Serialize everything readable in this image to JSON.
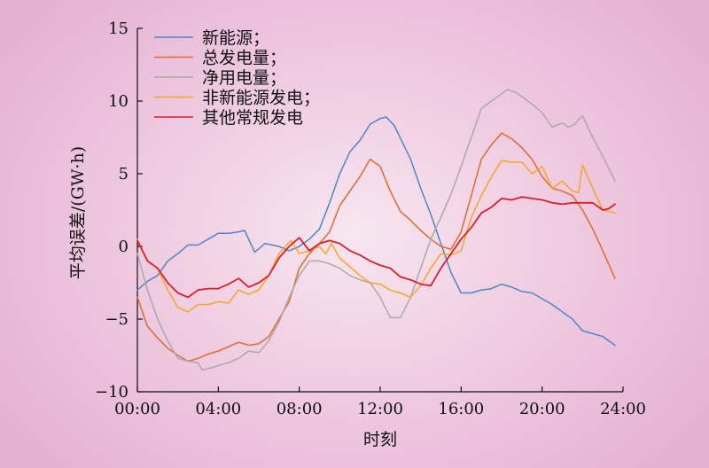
{
  "chart_data": {
    "type": "line",
    "title": "",
    "xlabel": "时刻",
    "ylabel": "平均误差/(GW·h)",
    "x_ticks": [
      "00:00",
      "04:00",
      "08:00",
      "12:00",
      "16:00",
      "20:00",
      "24:00"
    ],
    "y_ticks": [
      "15",
      "10",
      "5",
      "0",
      "−5",
      "−10"
    ],
    "xlim": [
      0,
      24
    ],
    "ylim": [
      -10,
      15
    ],
    "legend_position": "top-left",
    "grid": false,
    "series": [
      {
        "name": "新能源；",
        "color": "#4f86c6",
        "x": [
          0,
          0.5,
          1,
          1.5,
          2,
          2.5,
          3,
          3.5,
          4,
          4.5,
          5,
          5.3,
          5.8,
          6.3,
          7,
          7.5,
          8,
          8.5,
          9,
          9.5,
          10,
          10.5,
          11,
          11.5,
          12,
          12.3,
          12.7,
          13.5,
          14,
          14.5,
          15,
          15.5,
          16,
          16.5,
          17,
          17.5,
          18,
          18.5,
          19,
          19.5,
          20,
          20.5,
          21,
          21.5,
          22,
          22.5,
          23,
          23.6
        ],
        "y": [
          -3.0,
          -2.4,
          -2.0,
          -1.0,
          -0.5,
          0.1,
          0.1,
          0.5,
          0.9,
          0.9,
          1.0,
          1.1,
          -0.4,
          0.2,
          0.0,
          -0.3,
          0.0,
          0.5,
          1.2,
          3.0,
          5.0,
          6.5,
          7.3,
          8.4,
          8.8,
          8.9,
          8.3,
          6.0,
          4.0,
          2.2,
          0.2,
          -1.8,
          -3.2,
          -3.2,
          -3.0,
          -2.9,
          -2.6,
          -2.8,
          -3.1,
          -3.2,
          -3.6,
          -4.0,
          -4.5,
          -5.0,
          -5.8,
          -6.0,
          -6.2,
          -6.8
        ]
      },
      {
        "name": "总发电量；",
        "color": "#e06b2c",
        "x": [
          0,
          0.5,
          1,
          1.5,
          2,
          2.5,
          3,
          3.5,
          4,
          4.5,
          5,
          5.5,
          6,
          6.5,
          7,
          7.5,
          8,
          8.5,
          9,
          9.5,
          10,
          10.5,
          11,
          11.5,
          12,
          12.5,
          13,
          13.5,
          14,
          14.5,
          15,
          15.5,
          16,
          16.5,
          17,
          17.5,
          18,
          18.5,
          19,
          19.5,
          20,
          20.5,
          21,
          21.5,
          22,
          22.5,
          23,
          23.6
        ],
        "y": [
          -3.5,
          -5.5,
          -6.3,
          -7.0,
          -7.5,
          -7.9,
          -7.7,
          -7.4,
          -7.2,
          -6.9,
          -6.6,
          -6.8,
          -6.7,
          -6.2,
          -5.0,
          -3.8,
          -1.5,
          -0.5,
          0.2,
          1.0,
          2.8,
          3.8,
          4.8,
          6.0,
          5.5,
          3.8,
          2.4,
          1.8,
          1.1,
          0.5,
          0.0,
          -0.2,
          1.0,
          3.5,
          6.0,
          7.0,
          7.8,
          7.4,
          6.8,
          6.0,
          4.8,
          4.0,
          3.8,
          3.5,
          2.5,
          1.2,
          -0.3,
          -2.2
        ]
      },
      {
        "name": "净用电量；",
        "color": "#a9a9a9",
        "x": [
          0,
          0.5,
          1,
          1.5,
          2,
          2.5,
          3,
          3.2,
          3.5,
          4,
          4.5,
          5,
          5.5,
          6,
          6.5,
          7,
          7.5,
          8,
          8.5,
          9,
          9.5,
          10,
          10.5,
          11,
          11.5,
          12,
          12.5,
          13,
          13.5,
          14,
          14.5,
          15,
          15.5,
          16,
          16.5,
          17,
          17.5,
          18,
          18.3,
          18.7,
          19,
          19.5,
          20,
          20.5,
          21,
          21.3,
          21.6,
          22,
          22.5,
          23,
          23.6
        ],
        "y": [
          -0.5,
          -3.0,
          -5.0,
          -6.5,
          -7.7,
          -7.9,
          -8.0,
          -8.5,
          -8.4,
          -8.2,
          -8.0,
          -7.7,
          -7.2,
          -7.3,
          -6.5,
          -5.2,
          -3.5,
          -2.0,
          -1.0,
          -1.0,
          -1.2,
          -1.5,
          -2.0,
          -2.3,
          -2.5,
          -3.5,
          -4.9,
          -4.9,
          -3.5,
          -1.5,
          0.5,
          2.0,
          3.6,
          5.5,
          7.5,
          9.5,
          10.0,
          10.5,
          10.8,
          10.6,
          10.3,
          9.8,
          9.2,
          8.2,
          8.5,
          8.2,
          8.4,
          9.0,
          7.5,
          6.2,
          4.5
        ]
      },
      {
        "name": "非新能源发电；",
        "color": "#f5a623",
        "x": [
          0,
          0.5,
          1,
          1.5,
          2,
          2.5,
          3,
          3.5,
          4,
          4.5,
          5,
          5.5,
          6,
          6.5,
          7,
          7.3,
          7.6,
          8,
          8.5,
          9,
          9.3,
          9.6,
          10,
          10.5,
          11,
          11.5,
          12,
          12.5,
          13,
          13.5,
          14,
          14.5,
          15,
          15.5,
          16,
          16.5,
          17,
          17.5,
          18,
          18.5,
          19,
          19.5,
          20,
          20.5,
          21,
          21.5,
          21.8,
          22,
          22.5,
          23,
          23.6
        ],
        "y": [
          0.5,
          -1.0,
          -1.5,
          -3.0,
          -4.2,
          -4.5,
          -4.0,
          -4.0,
          -3.8,
          -3.9,
          -3.0,
          -3.3,
          -3.0,
          -2.0,
          -0.5,
          0.0,
          0.4,
          -0.5,
          -0.3,
          0.0,
          -0.5,
          0.2,
          -0.8,
          -1.4,
          -2.0,
          -2.5,
          -2.6,
          -3.0,
          -3.2,
          -3.5,
          -2.7,
          -1.5,
          -0.5,
          -0.6,
          -0.3,
          2.0,
          3.5,
          4.8,
          5.9,
          5.8,
          5.8,
          5.0,
          5.5,
          4.0,
          4.5,
          3.8,
          3.7,
          5.6,
          4.0,
          2.5,
          2.3
        ]
      },
      {
        "name": "其他常规发电",
        "color": "#dc1e2a",
        "x": [
          0,
          0.5,
          1,
          1.5,
          2,
          2.5,
          3,
          3.5,
          4,
          4.5,
          5,
          5.5,
          6,
          6.5,
          7,
          7.5,
          8,
          8.5,
          9,
          9.5,
          10,
          10.5,
          11,
          11.5,
          12,
          12.5,
          13,
          13.5,
          14,
          14.5,
          15,
          15.5,
          16,
          16.5,
          17,
          17.5,
          18,
          18.5,
          19,
          19.5,
          20,
          20.5,
          21,
          21.5,
          22,
          22.5,
          23,
          23.3,
          23.6
        ],
        "y": [
          0.4,
          -1.0,
          -1.5,
          -2.5,
          -3.2,
          -3.5,
          -3.0,
          -2.9,
          -2.9,
          -2.6,
          -2.2,
          -2.8,
          -2.5,
          -2.0,
          -0.8,
          0.0,
          0.6,
          -0.3,
          0.2,
          0.4,
          0.2,
          -0.3,
          -0.6,
          -1.0,
          -1.3,
          -1.5,
          -2.1,
          -2.3,
          -2.6,
          -2.7,
          -1.5,
          -0.5,
          0.5,
          1.3,
          2.3,
          2.7,
          3.3,
          3.2,
          3.4,
          3.3,
          3.2,
          3.0,
          2.9,
          3.0,
          3.0,
          3.0,
          2.5,
          2.6,
          2.9
        ]
      }
    ]
  }
}
